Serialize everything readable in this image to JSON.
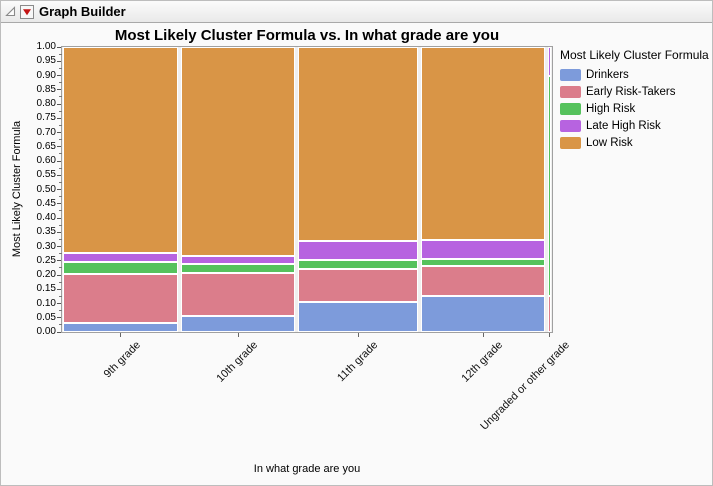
{
  "window": {
    "title": "Graph Builder",
    "icons": {
      "disclosure": "open-outline-triangle",
      "menu": "red-triangle"
    }
  },
  "chart_data": {
    "type": "mosaic",
    "title": "Most Likely Cluster Formula vs. In what grade are you",
    "xlabel": "In what grade are you",
    "ylabel": "Most Likely Cluster Formula",
    "ylim": [
      0.0,
      1.0
    ],
    "y_tick_step": 0.05,
    "y_ticks": [
      "1.00",
      "0.95",
      "0.90",
      "0.85",
      "0.80",
      "0.75",
      "0.70",
      "0.65",
      "0.60",
      "0.55",
      "0.50",
      "0.45",
      "0.40",
      "0.35",
      "0.30",
      "0.25",
      "0.20",
      "0.15",
      "0.10",
      "0.05",
      "0.00"
    ],
    "grid": false,
    "legend": {
      "title": "Most Likely Cluster Formula",
      "position": "right",
      "entries": [
        {
          "label": "Drinkers",
          "color": "#7D9BDB"
        },
        {
          "label": "Early Risk-Takers",
          "color": "#DB7D8B"
        },
        {
          "label": "High Risk",
          "color": "#55C25C"
        },
        {
          "label": "Late High Risk",
          "color": "#B763E0"
        },
        {
          "label": "Low Risk",
          "color": "#D99546"
        }
      ]
    },
    "series_order_bottom_to_top": [
      "Drinkers",
      "Early Risk-Takers",
      "High Risk",
      "Late High Risk",
      "Low Risk"
    ],
    "categories": [
      {
        "label": "9th grade",
        "width_frac": 0.237,
        "values": {
          "Drinkers": 0.03,
          "Early Risk-Takers": 0.172,
          "High Risk": 0.042,
          "Late High Risk": 0.032,
          "Low Risk": 0.724
        }
      },
      {
        "label": "10th grade",
        "width_frac": 0.235,
        "values": {
          "Drinkers": 0.055,
          "Early Risk-Takers": 0.152,
          "High Risk": 0.032,
          "Late High Risk": 0.028,
          "Low Risk": 0.733
        }
      },
      {
        "label": "11th grade",
        "width_frac": 0.247,
        "values": {
          "Drinkers": 0.105,
          "Early Risk-Takers": 0.117,
          "High Risk": 0.03,
          "Late High Risk": 0.066,
          "Low Risk": 0.682
        }
      },
      {
        "label": "12th grade",
        "width_frac": 0.256,
        "values": {
          "Drinkers": 0.126,
          "Early Risk-Takers": 0.104,
          "High Risk": 0.026,
          "Late High Risk": 0.066,
          "Low Risk": 0.678
        }
      },
      {
        "label": "Ungraded or other grade",
        "width_frac": 0.007,
        "values": {
          "Drinkers": 0.0,
          "Early Risk-Takers": 0.125,
          "High Risk": 0.775,
          "Late High Risk": 0.1,
          "Low Risk": 0.0
        }
      }
    ]
  }
}
